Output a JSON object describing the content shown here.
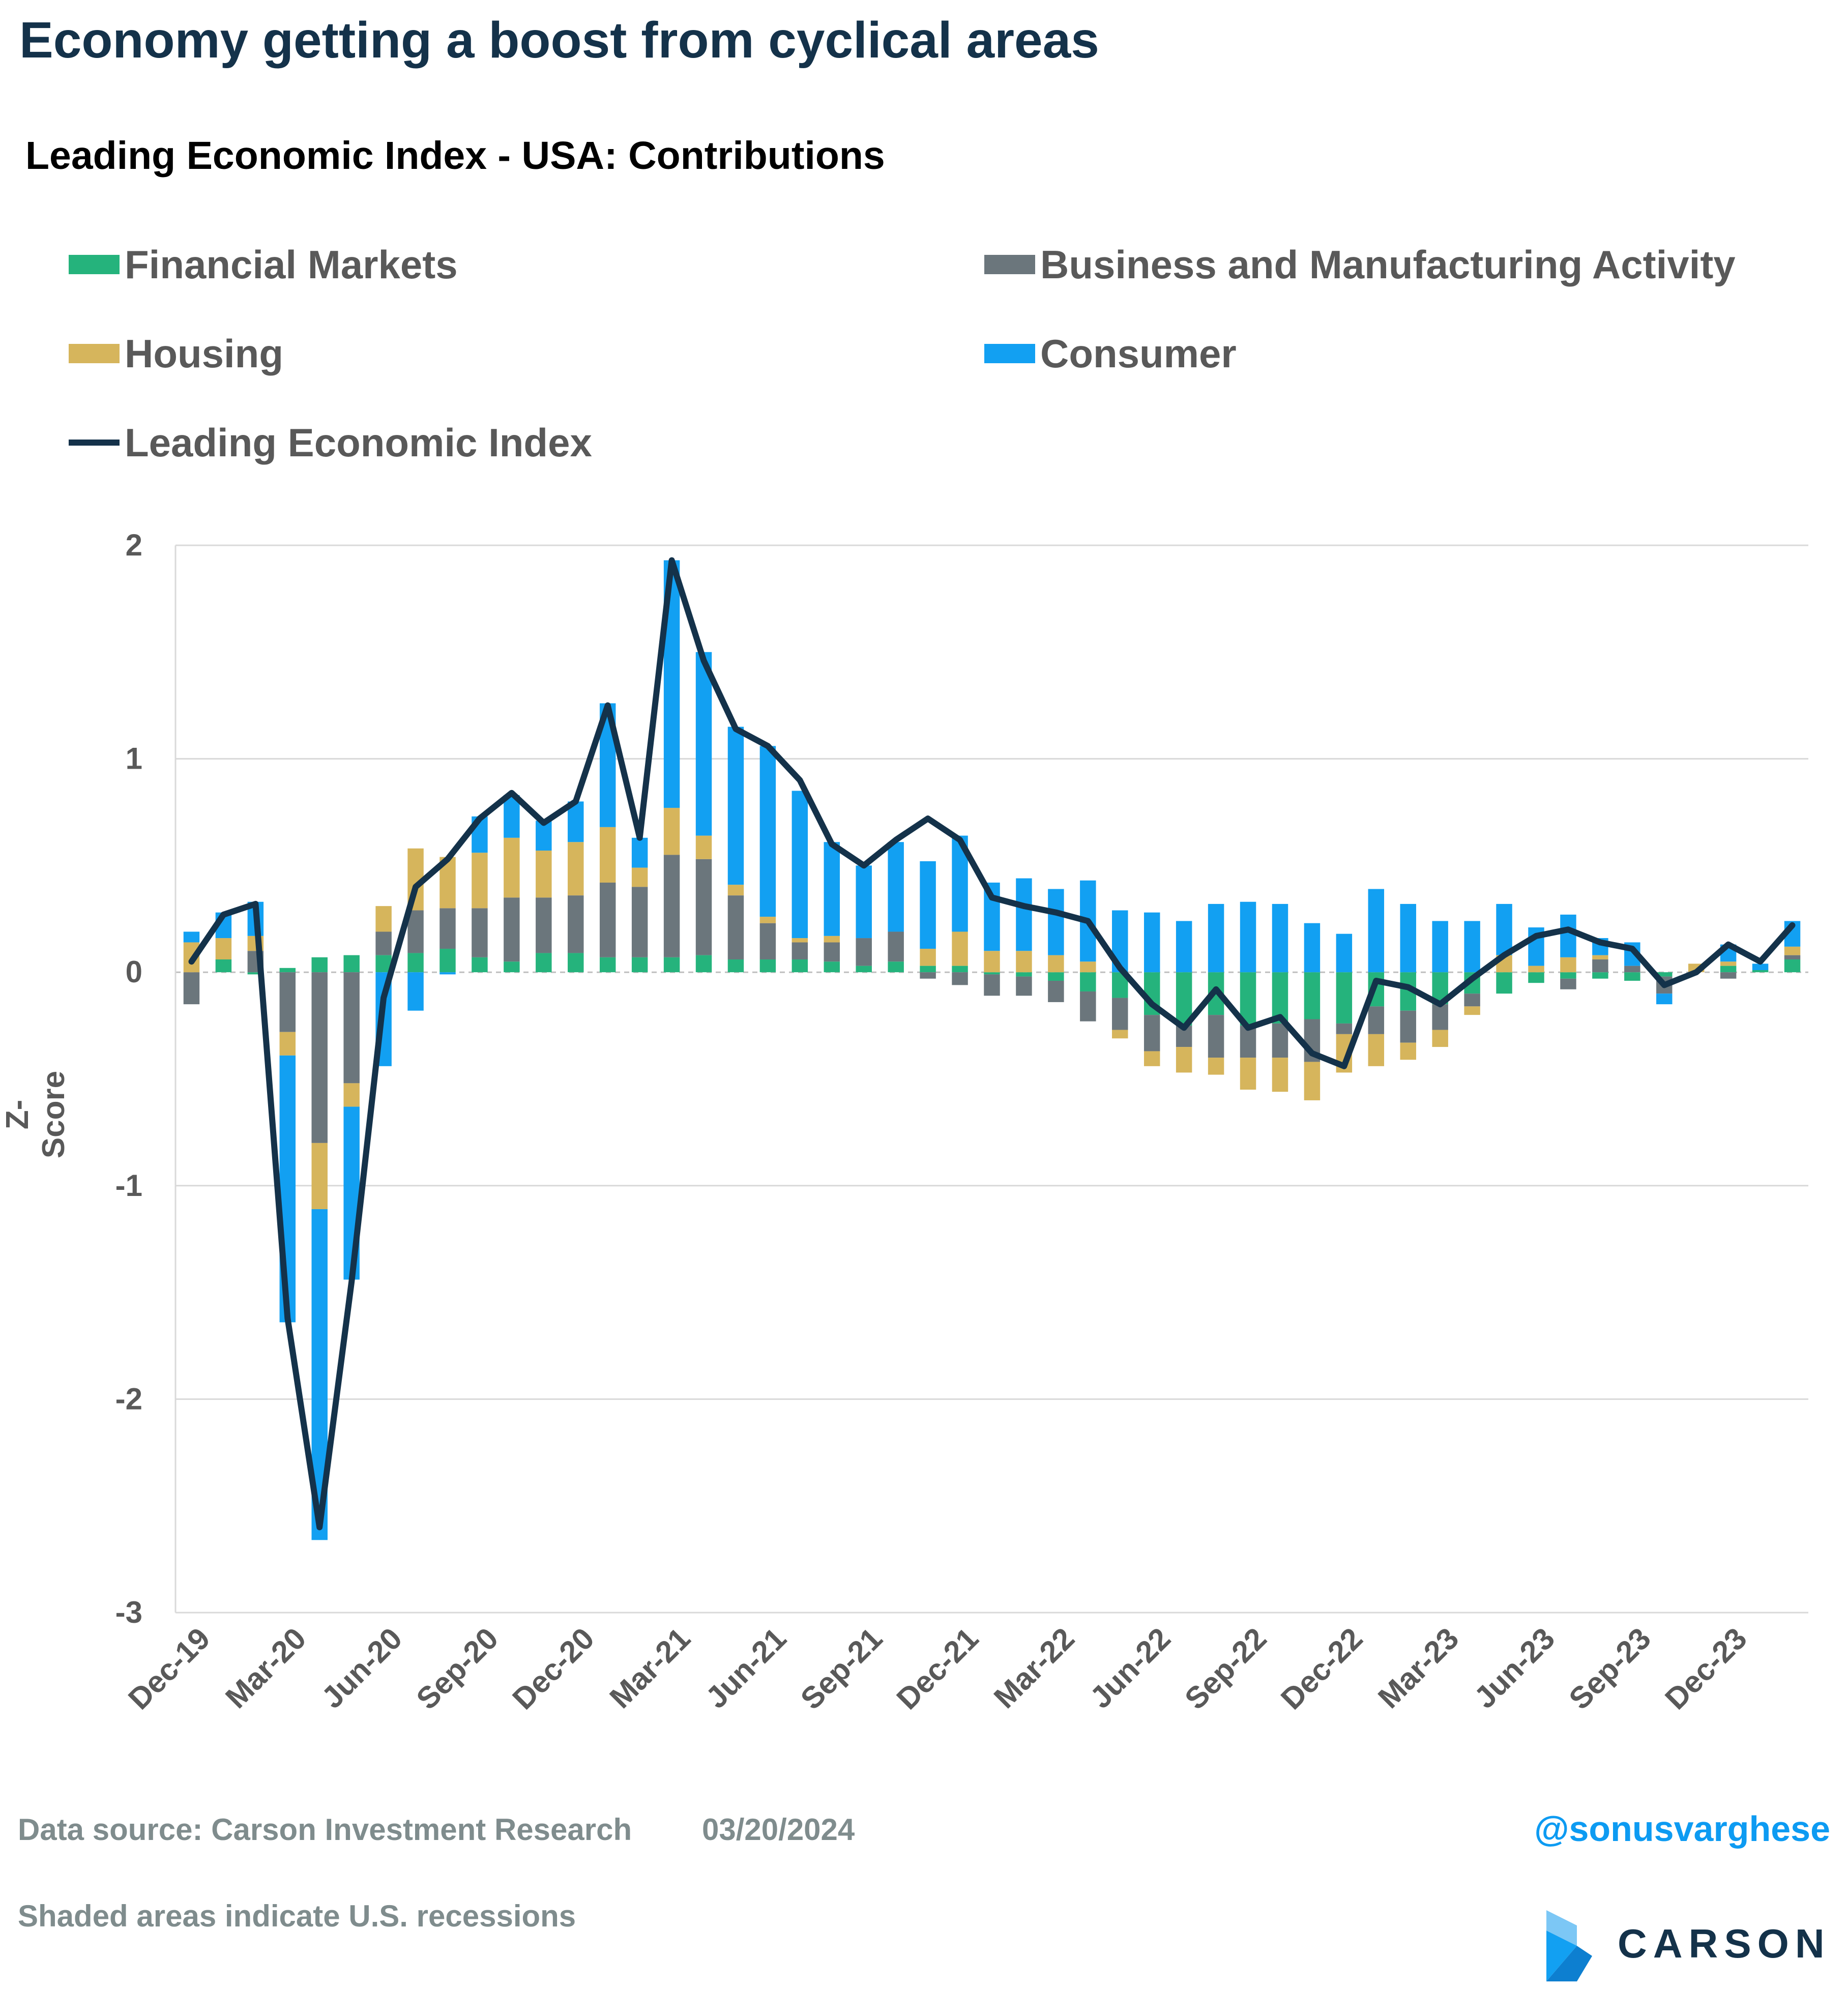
{
  "header": {
    "title": "Economy getting a boost from cyclical areas",
    "subtitle": "Leading Economic Index - USA: Contributions"
  },
  "legend": [
    {
      "label": "Financial Markets",
      "color": "#25b37c",
      "kind": "bar"
    },
    {
      "label": "Business and Manufacturing Activity",
      "color": "#6b767c",
      "kind": "bar"
    },
    {
      "label": "Housing",
      "color": "#d6b55c",
      "kind": "bar"
    },
    {
      "label": "Consumer",
      "color": "#12a0f2",
      "kind": "bar"
    },
    {
      "label": "Leading Economic Index",
      "color": "#14324a",
      "kind": "line"
    }
  ],
  "footer": {
    "source": "Data source: Carson Investment Research",
    "date": "03/20/2024",
    "note": "Shaded areas indicate U.S. recessions",
    "handle": "@sonusvarghese",
    "logo_text": "CARSON"
  },
  "chart_data": {
    "type": "bar",
    "stacked": true,
    "ylabel": "Z-Score",
    "ylim": [
      -3,
      2
    ],
    "yticks": [
      2,
      1,
      0,
      -1,
      -2,
      -3
    ],
    "grid": "horizontal",
    "legend_position": "top",
    "x_tick_labels": [
      "Dec-19",
      "Mar-20",
      "Jun-20",
      "Sep-20",
      "Dec-20",
      "Mar-21",
      "Jun-21",
      "Sep-21",
      "Dec-21",
      "Mar-22",
      "Jun-22",
      "Sep-22",
      "Dec-22",
      "Mar-23",
      "Jun-23",
      "Sep-23",
      "Dec-23"
    ],
    "categories": [
      "Dec-19",
      "Jan-20",
      "Feb-20",
      "Mar-20",
      "Apr-20",
      "May-20",
      "Jun-20",
      "Jul-20",
      "Aug-20",
      "Sep-20",
      "Oct-20",
      "Nov-20",
      "Dec-20",
      "Jan-21",
      "Feb-21",
      "Mar-21",
      "Apr-21",
      "May-21",
      "Jun-21",
      "Jul-21",
      "Aug-21",
      "Sep-21",
      "Oct-21",
      "Nov-21",
      "Dec-21",
      "Jan-22",
      "Feb-22",
      "Mar-22",
      "Apr-22",
      "May-22",
      "Jun-22",
      "Jul-22",
      "Aug-22",
      "Sep-22",
      "Oct-22",
      "Nov-22",
      "Dec-22",
      "Jan-23",
      "Feb-23",
      "Mar-23",
      "Apr-23",
      "May-23",
      "Jun-23",
      "Jul-23",
      "Aug-23",
      "Sep-23",
      "Oct-23",
      "Nov-23",
      "Dec-23",
      "Jan-24",
      "Feb-24"
    ],
    "series": [
      {
        "name": "Financial Markets",
        "color": "#25b37c",
        "values": [
          0.0,
          0.06,
          -0.01,
          0.02,
          0.07,
          0.08,
          0.08,
          0.09,
          0.11,
          0.07,
          0.05,
          0.09,
          0.09,
          0.07,
          0.07,
          0.07,
          0.08,
          0.06,
          0.06,
          0.06,
          0.05,
          0.03,
          0.05,
          0.03,
          0.03,
          -0.01,
          -0.02,
          -0.04,
          -0.09,
          -0.12,
          -0.2,
          -0.25,
          -0.2,
          -0.25,
          -0.24,
          -0.22,
          -0.24,
          -0.16,
          -0.18,
          -0.15,
          -0.1,
          -0.1,
          -0.05,
          -0.03,
          -0.03,
          -0.04,
          -0.02,
          0.0,
          0.03,
          0.01,
          0.06
        ]
      },
      {
        "name": "Business and Manufacturing Activity",
        "color": "#6b767c",
        "values": [
          -0.15,
          0.0,
          0.1,
          -0.28,
          -0.8,
          -0.52,
          0.11,
          0.2,
          0.19,
          0.23,
          0.3,
          0.26,
          0.27,
          0.35,
          0.33,
          0.48,
          0.45,
          0.3,
          0.17,
          0.08,
          0.09,
          0.13,
          0.14,
          -0.03,
          -0.06,
          -0.1,
          -0.09,
          -0.1,
          -0.14,
          -0.15,
          -0.17,
          -0.1,
          -0.2,
          -0.15,
          -0.16,
          -0.2,
          -0.05,
          -0.13,
          -0.15,
          -0.12,
          -0.06,
          0.0,
          0.0,
          -0.05,
          0.06,
          0.03,
          -0.08,
          0.0,
          -0.03,
          0.0,
          0.02
        ]
      },
      {
        "name": "Housing",
        "color": "#d6b55c",
        "values": [
          0.14,
          0.1,
          0.07,
          -0.11,
          -0.31,
          -0.11,
          0.12,
          0.29,
          0.24,
          0.26,
          0.28,
          0.22,
          0.25,
          0.26,
          0.09,
          0.22,
          0.11,
          0.05,
          0.03,
          0.02,
          0.03,
          0.0,
          0.0,
          0.08,
          0.16,
          0.1,
          0.1,
          0.08,
          0.05,
          -0.04,
          -0.07,
          -0.12,
          -0.08,
          -0.15,
          -0.16,
          -0.18,
          -0.18,
          -0.15,
          -0.08,
          -0.08,
          -0.04,
          0.08,
          0.03,
          0.07,
          0.02,
          0.0,
          0.0,
          0.04,
          0.02,
          0.0,
          0.04
        ]
      },
      {
        "name": "Consumer",
        "color": "#12a0f2",
        "values": [
          0.05,
          0.12,
          0.16,
          -1.25,
          -1.55,
          -0.81,
          -0.44,
          -0.18,
          -0.01,
          0.17,
          0.2,
          0.14,
          0.19,
          0.58,
          0.14,
          1.16,
          0.86,
          0.74,
          0.8,
          0.69,
          0.44,
          0.34,
          0.42,
          0.41,
          0.45,
          0.32,
          0.34,
          0.31,
          0.38,
          0.29,
          0.28,
          0.24,
          0.32,
          0.33,
          0.32,
          0.23,
          0.18,
          0.39,
          0.32,
          0.24,
          0.24,
          0.24,
          0.18,
          0.2,
          0.08,
          0.11,
          -0.05,
          0.0,
          0.08,
          0.03,
          0.12
        ]
      },
      {
        "name": "Leading Economic Index",
        "color": "#14324a",
        "kind": "line",
        "values": [
          0.05,
          0.27,
          0.32,
          -1.62,
          -2.6,
          -1.45,
          -0.12,
          0.4,
          0.53,
          0.72,
          0.84,
          0.7,
          0.8,
          1.25,
          0.63,
          1.93,
          1.46,
          1.14,
          1.06,
          0.9,
          0.6,
          0.5,
          0.62,
          0.72,
          0.62,
          0.35,
          0.31,
          0.28,
          0.24,
          0.02,
          -0.15,
          -0.26,
          -0.08,
          -0.26,
          -0.21,
          -0.38,
          -0.44,
          -0.04,
          -0.07,
          -0.15,
          -0.03,
          0.08,
          0.17,
          0.2,
          0.14,
          0.11,
          -0.06,
          0.0,
          0.13,
          0.05,
          0.22
        ]
      }
    ]
  }
}
